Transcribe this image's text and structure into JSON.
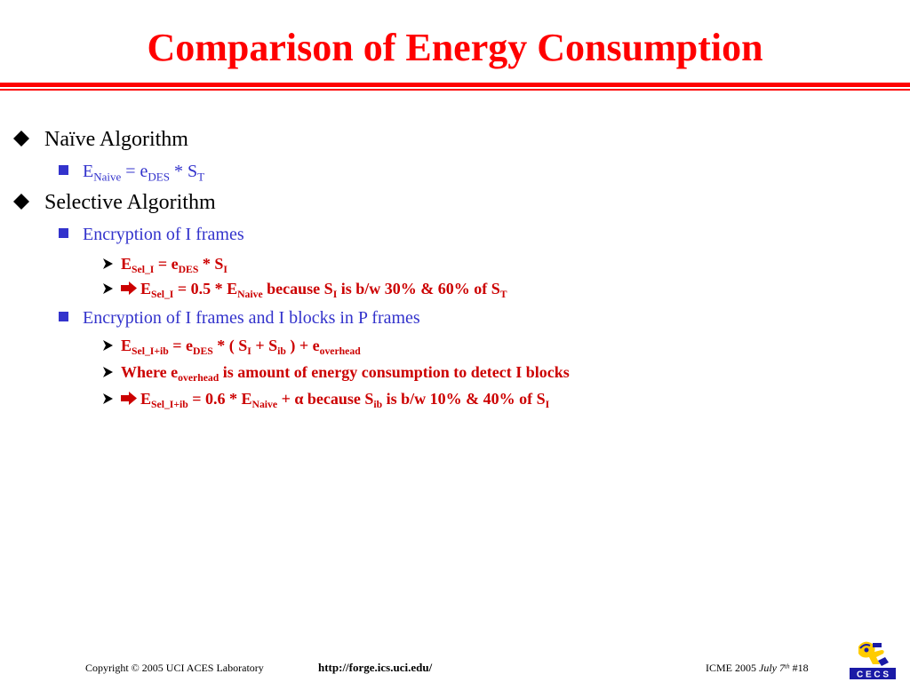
{
  "colors": {
    "title": "#ff0000",
    "rule": "#ff0000",
    "level1_text": "#000000",
    "level2_text_blue": "#3333cc",
    "level3_text": "#cc0000",
    "bullet": "#000000",
    "logo_blue": "#1a1aa6",
    "logo_yellow": "#ffcc00"
  },
  "slide": {
    "title": "Comparison of Energy Consumption"
  },
  "bullets": {
    "b1": {
      "text": "Naïve Algorithm"
    },
    "b1_1": {
      "E": "E",
      "naive_sub": "Naive",
      "eq": " = e",
      "des_sub": "DES",
      "times": " * S",
      "t_sub": "T"
    },
    "b2": {
      "text": "Selective Algorithm"
    },
    "b2_1": {
      "text": "Encryption of I frames"
    },
    "b2_1_1": {
      "E": "E",
      "sel_sub": "Sel_I",
      "eq": " = e",
      "des_sub": "DES",
      "times": " * S",
      "i_sub": "I"
    },
    "b2_1_2": {
      "E": "E",
      "sel_sub": "Sel_I",
      "eq": " = 0.5 * E",
      "naive_sub": "Naive",
      "because": " because S",
      "i_sub": "I",
      "range": " is b/w 30% & 60% of S",
      "t_sub": "T"
    },
    "b2_2": {
      "text": "Encryption of I frames and I blocks in P frames"
    },
    "b2_2_1": {
      "E": "E",
      "sel_sub": "Sel_I+ib",
      "eq": " = e",
      "des_sub": "DES",
      "paren": " * ( S",
      "i_sub": "I",
      "plus": " + S",
      "ib_sub": "ib",
      "close": " ) + e",
      "overhead_sub": "overhead"
    },
    "b2_2_2": {
      "where": "Where e",
      "overhead_sub": "overhead",
      "rest": " is amount of energy consumption to detect I blocks"
    },
    "b2_2_3": {
      "E": "E",
      "sel_sub": "Sel_I+ib",
      "eq": " = 0.6 * E",
      "naive_sub": "Naive",
      "plus": " + α because S",
      "ib_sub": "ib",
      "range": " is b/w 10% & 40% of S",
      "i_sub": "I"
    }
  },
  "footer": {
    "copyright": "Copyright © 2005  UCI ACES Laboratory",
    "url": "http://forge.ics.uci.edu/",
    "conference": "ICME 2005  ",
    "date_month": "July 7",
    "date_sup": "th",
    "slide_number": "  #18"
  },
  "logo": {
    "text": "C E C S"
  }
}
